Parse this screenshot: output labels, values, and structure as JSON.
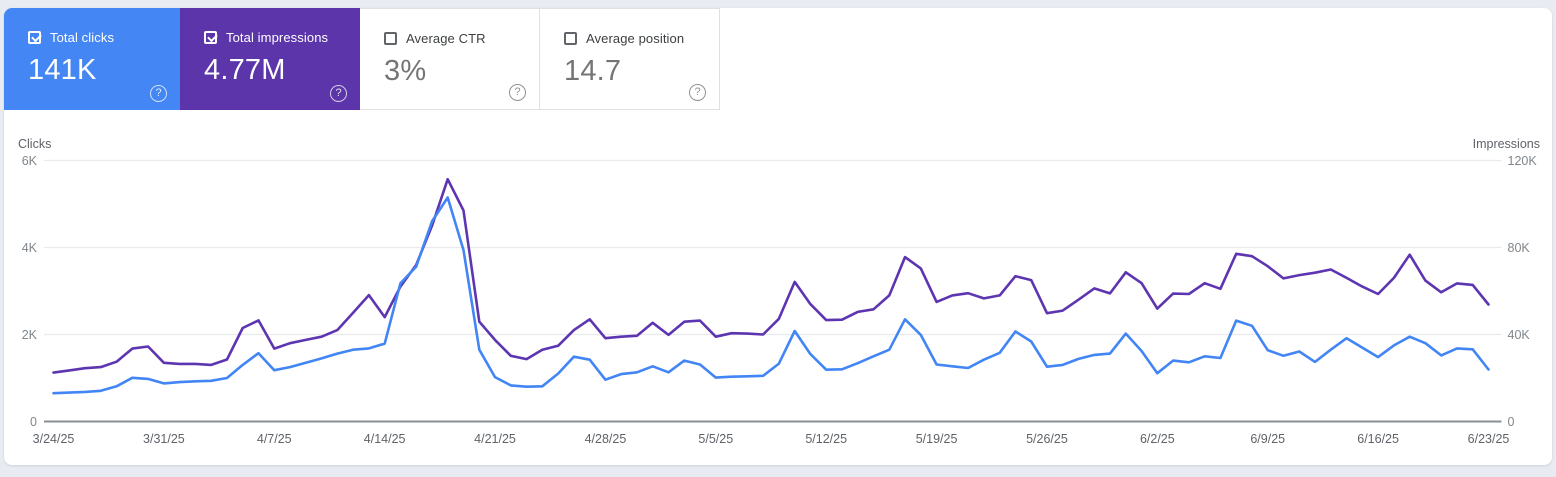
{
  "cards": [
    {
      "id": "total-clicks",
      "label": "Total clicks",
      "value": "141K",
      "checked": true,
      "bg": "#4486f4",
      "fg": "#ffffff"
    },
    {
      "id": "total-impressions",
      "label": "Total impressions",
      "value": "4.77M",
      "checked": true,
      "bg": "#5c35ab",
      "fg": "#ffffff"
    },
    {
      "id": "average-ctr",
      "label": "Average CTR",
      "value": "3%",
      "checked": false,
      "bg": "#ffffff",
      "fg": "#757575"
    },
    {
      "id": "average-position",
      "label": "Average position",
      "value": "14.7",
      "checked": false,
      "bg": "#ffffff",
      "fg": "#757575"
    }
  ],
  "help_icon_glyph": "?",
  "colors": {
    "clicks_line": "#4285f4",
    "impressions_line": "#5e35b1",
    "gridline": "#e8eaed",
    "axis_line": "#8a8f94",
    "tick_text": "#80868b",
    "date_text": "#5f6368",
    "axis_header_text": "#5f6368"
  },
  "chart_data": {
    "type": "line",
    "grid": true,
    "legend_position": "none",
    "start_date": "3/24/25",
    "end_date": "6/23/25",
    "points_per_series": 92,
    "left_axis": {
      "label": "Clicks",
      "range": [
        0,
        6000
      ],
      "tick_labels": [
        "0",
        "2K",
        "4K",
        "6K"
      ]
    },
    "right_axis": {
      "label": "Impressions",
      "range": [
        0,
        120000
      ],
      "tick_labels": [
        "0",
        "40K",
        "80K",
        "120K"
      ]
    },
    "x_tick_labels": [
      "3/24/25",
      "3/31/25",
      "4/7/25",
      "4/14/25",
      "4/21/25",
      "4/28/25",
      "5/5/25",
      "5/12/25",
      "5/19/25",
      "5/26/25",
      "6/2/25",
      "6/9/25",
      "6/16/25",
      "6/23/25"
    ],
    "series": [
      {
        "name": "Total clicks",
        "axis": "left",
        "color": "#4285f4",
        "values": [
          650,
          665,
          680,
          705,
          810,
          1005,
          980,
          875,
          905,
          925,
          935,
          1000,
          1300,
          1570,
          1180,
          1250,
          1350,
          1450,
          1560,
          1650,
          1680,
          1790,
          3175,
          3560,
          4600,
          5150,
          3940,
          1650,
          1020,
          830,
          800,
          810,
          1100,
          1490,
          1420,
          960,
          1090,
          1130,
          1270,
          1130,
          1400,
          1310,
          1010,
          1030,
          1040,
          1050,
          1330,
          2080,
          1550,
          1190,
          1200,
          1340,
          1500,
          1650,
          2350,
          1990,
          1310,
          1270,
          1230,
          1420,
          1580,
          2070,
          1840,
          1260,
          1300,
          1440,
          1530,
          1560,
          2020,
          1620,
          1110,
          1400,
          1360,
          1500,
          1460,
          2320,
          2200,
          1640,
          1510,
          1610,
          1370,
          1650,
          1915,
          1700,
          1480,
          1750,
          1950,
          1800,
          1520,
          1680,
          1660,
          1195
        ]
      },
      {
        "name": "Total impressions",
        "axis": "right",
        "color": "#5e35b1",
        "values_thousands": [
          22.5,
          23.5,
          24.5,
          25.0,
          27.5,
          33.5,
          34.5,
          27.0,
          26.5,
          26.5,
          26.0,
          28.5,
          43.0,
          46.5,
          33.5,
          36.0,
          37.5,
          39.0,
          42.0,
          50.0,
          58.1,
          48.0,
          62.0,
          72.0,
          90.0,
          111.4,
          97.0,
          45.9,
          37.5,
          30.2,
          28.7,
          33.0,
          34.8,
          42.0,
          47.0,
          38.3,
          39.0,
          39.4,
          45.4,
          39.8,
          45.9,
          46.4,
          39.0,
          40.6,
          40.4,
          40.0,
          47.2,
          64.2,
          54.0,
          46.6,
          46.8,
          50.4,
          51.6,
          58.0,
          75.6,
          70.4,
          55.0,
          58.0,
          59.0,
          56.6,
          58.0,
          66.8,
          65.0,
          49.8,
          51.0,
          56.0,
          61.2,
          58.9,
          68.6,
          63.6,
          51.9,
          58.8,
          58.6,
          63.6,
          61.0,
          77.1,
          76.0,
          71.4,
          65.8,
          67.3,
          68.4,
          69.9,
          66.0,
          62.0,
          58.6,
          66.0,
          76.7,
          64.8,
          59.4,
          63.5,
          62.8,
          53.8
        ]
      }
    ]
  }
}
